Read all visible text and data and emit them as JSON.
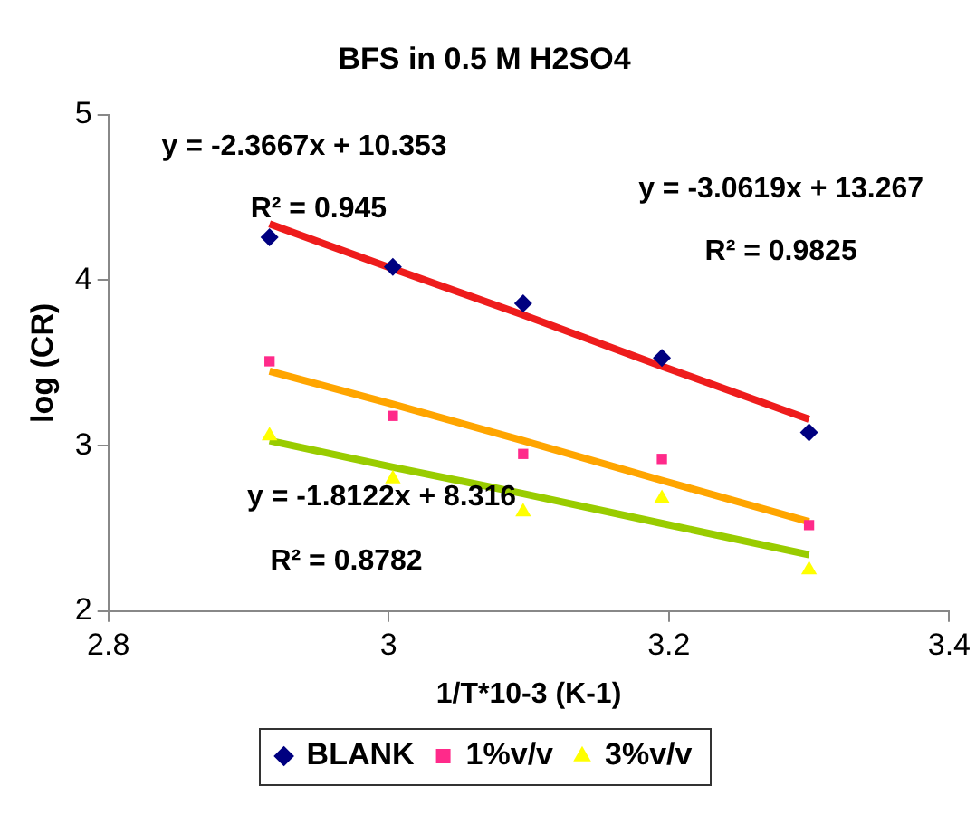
{
  "chart_data": {
    "type": "scatter",
    "title": "BFS in 0.5 M H2SO4",
    "xlabel": "1/T*10-3 (K-1)",
    "ylabel": "log (CR)",
    "x": [
      2.915,
      3.003,
      3.096,
      3.195,
      3.3
    ],
    "series": [
      {
        "name": "BLANK",
        "color": "#000080",
        "marker": "diamond",
        "values": [
          4.26,
          4.08,
          3.86,
          3.53,
          3.08
        ]
      },
      {
        "name": "1%v/v",
        "color": "#ff2a8a",
        "marker": "square",
        "values": [
          3.51,
          3.18,
          2.95,
          2.92,
          2.52
        ]
      },
      {
        "name": "3%v/v",
        "color": "#ffff00",
        "marker": "triangle",
        "values": [
          3.06,
          2.8,
          2.6,
          2.68,
          2.25
        ]
      },
      {
        "type": "line",
        "color": "#ee1c1c",
        "marker": "none",
        "values": [
          4.34,
          4.07,
          3.79,
          3.48,
          3.16
        ]
      },
      {
        "type": "line",
        "color": "#ffa500",
        "marker": "none",
        "values": [
          3.45,
          3.25,
          3.03,
          2.79,
          2.54
        ]
      },
      {
        "type": "line",
        "color": "#99cc00",
        "marker": "none",
        "values": [
          3.03,
          2.87,
          2.71,
          2.53,
          2.34
        ]
      }
    ],
    "xlim": [
      2.8,
      3.4
    ],
    "xticks": [
      2.8,
      3,
      3.2,
      3.4
    ],
    "ylim": [
      2,
      5
    ],
    "yticks": [
      2,
      3,
      4,
      5
    ],
    "grid": false,
    "legend": "bottom",
    "annotations": [
      "y = -2.3667x + 10.353",
      "R² = 0.945",
      "y = -3.0619x + 13.267",
      "R² = 0.9825",
      "y = -1.8122x + 8.316",
      "R² = 0.8782"
    ]
  }
}
